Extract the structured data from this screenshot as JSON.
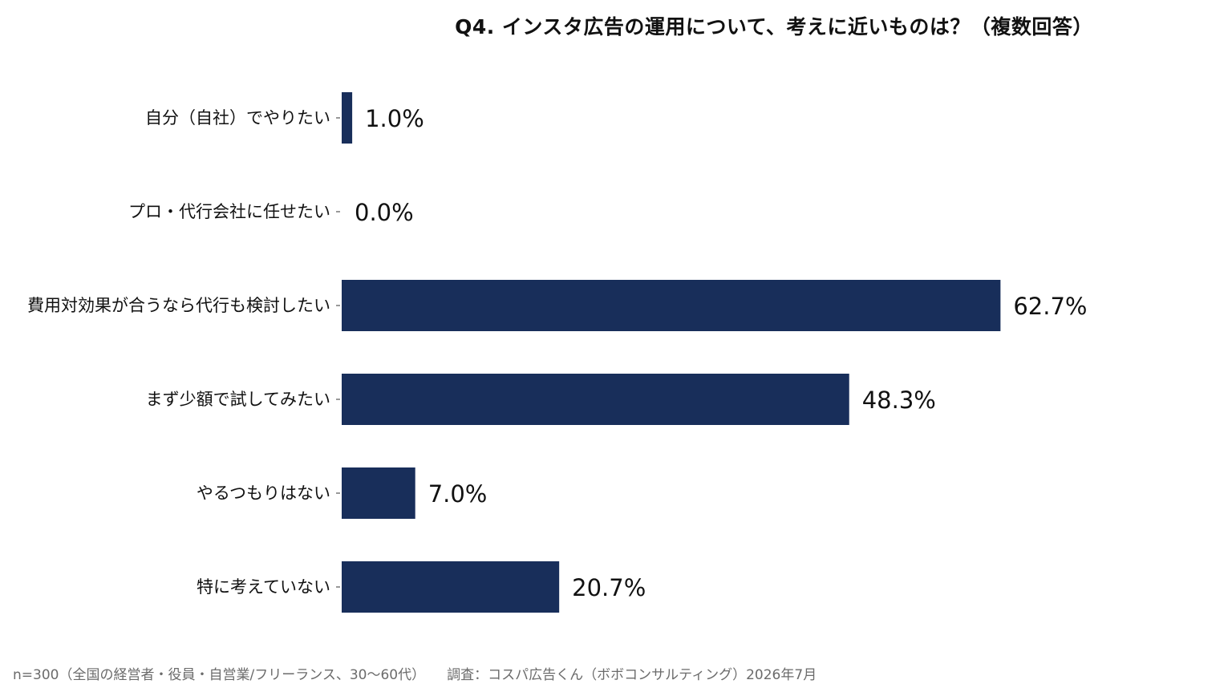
{
  "chart_data": {
    "type": "bar",
    "orientation": "horizontal",
    "title": "Q4. インスタ広告の運用について、考えに近いものは？（複数回答）",
    "categories": [
      "自分（自社）でやりたい",
      "プロ・代行会社に任せたい",
      "費用対効果が合うなら代行も検討したい",
      "まず少額で試してみたい",
      "やるつもりはない",
      "特に考えていない"
    ],
    "values": [
      1.0,
      0.0,
      62.7,
      48.3,
      7.0,
      20.7
    ],
    "value_labels": [
      "1.0%",
      "0.0%",
      "62.7%",
      "48.3%",
      "7.0%",
      "20.7%"
    ],
    "unit": "%",
    "xlim": [
      0,
      100
    ],
    "grid": false,
    "legend": "none",
    "bar_color": "#182e5a"
  },
  "footnote": "n=300（全国の経営者・役員・自営業/フリーランス、30〜60代）     調査：コスパ広告くん（ボボコンサルティング）2026年7月"
}
